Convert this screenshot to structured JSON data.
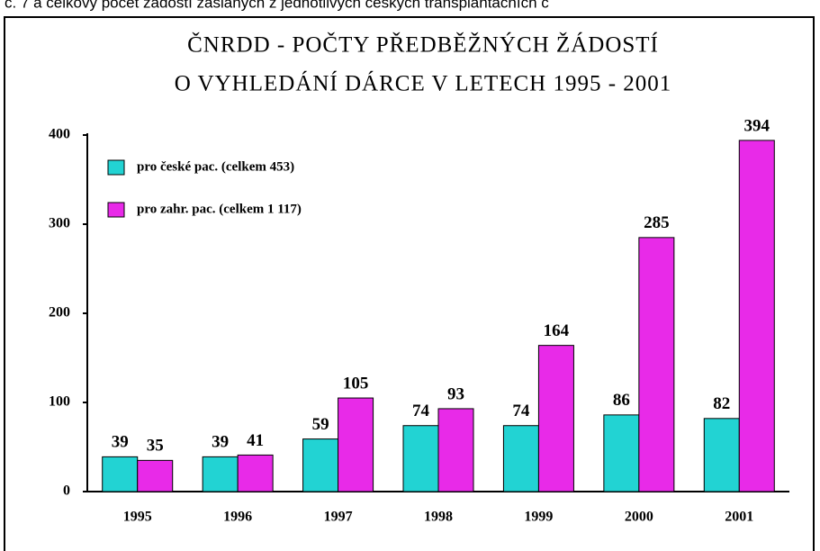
{
  "header_text": "č. 7 a celkový počet žádostí zaslaných z jednotlivých českých transplantačních c",
  "chart_data": {
    "type": "bar",
    "title": [
      "ČNRDD - POČTY PŘEDBĚŽNÝCH ŽÁDOSTÍ",
      "O VYHLEDÁNÍ DÁRCE V LETECH 1995 - 2001"
    ],
    "categories": [
      "1995",
      "1996",
      "1997",
      "1998",
      "1999",
      "2000",
      "2001"
    ],
    "series": [
      {
        "name": "pro české pac. (celkem 453)",
        "color": "#22d3d3",
        "values": [
          39,
          39,
          59,
          74,
          74,
          86,
          82
        ]
      },
      {
        "name": "pro zahr. pac. (celkem 1 117)",
        "color": "#e82ae8",
        "values": [
          35,
          41,
          105,
          93,
          164,
          285,
          394
        ]
      }
    ],
    "ylim": [
      0,
      400
    ],
    "yticks": [
      0,
      100,
      200,
      300,
      400
    ],
    "legend": "upper left"
  }
}
